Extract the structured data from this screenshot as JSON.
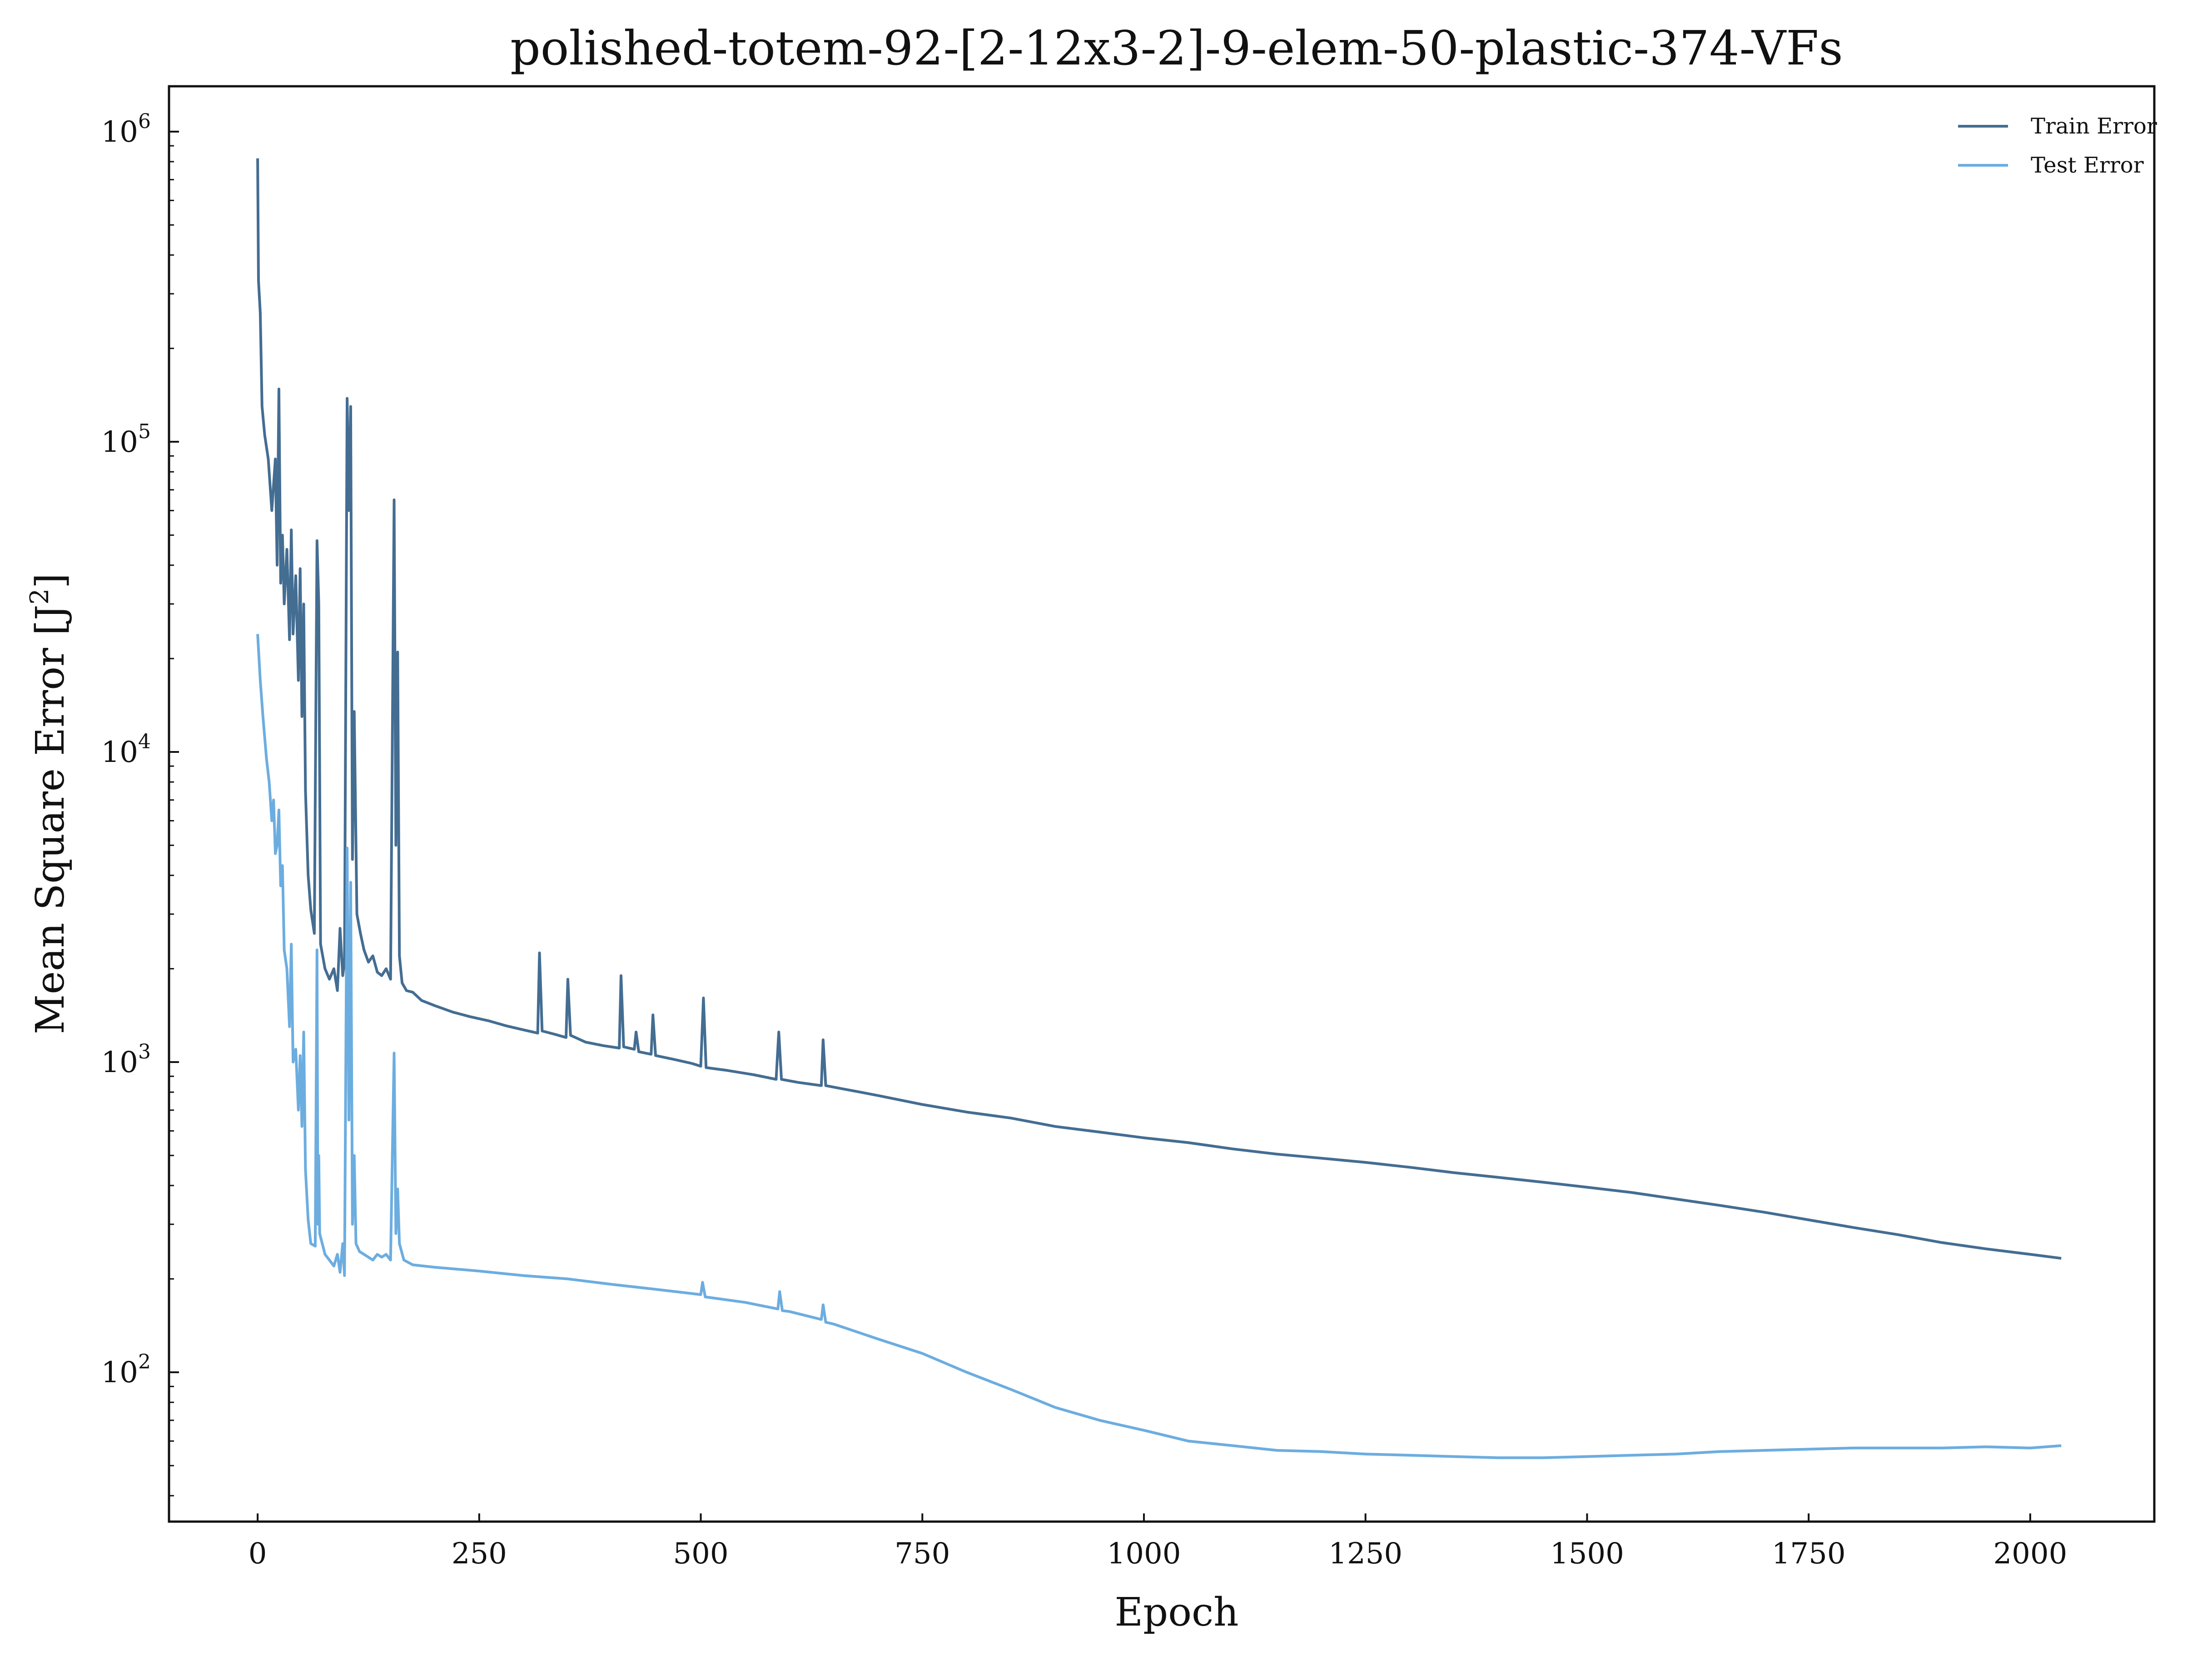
{
  "chart_data": {
    "type": "line",
    "title": "polished-totem-92-[2-12x3-2]-9-elem-50-plastic-374-VFs",
    "xlabel": "Epoch",
    "ylabel": "Mean Square Error [J²]",
    "ylabel_prefix": "Mean Square Error [J",
    "ylabel_sup": "2",
    "ylabel_suffix": "]",
    "xlim": [
      -100,
      2140
    ],
    "ylim": [
      33,
      1400000
    ],
    "yscale": "log",
    "x_ticks": [
      0,
      250,
      500,
      750,
      1000,
      1250,
      1500,
      1750,
      2000
    ],
    "y_ticks": [
      {
        "value": 100,
        "base": "10",
        "exp": "2"
      },
      {
        "value": 1000,
        "base": "10",
        "exp": "3"
      },
      {
        "value": 10000,
        "base": "10",
        "exp": "4"
      },
      {
        "value": 100000,
        "base": "10",
        "exp": "5"
      },
      {
        "value": 1000000,
        "base": "10",
        "exp": "6"
      }
    ],
    "grid": false,
    "legend_position": "top-right",
    "series": [
      {
        "name": "Train Error",
        "color": "#446d92",
        "points": [
          [
            0,
            820000
          ],
          [
            1,
            330000
          ],
          [
            3,
            260000
          ],
          [
            5,
            130000
          ],
          [
            8,
            105000
          ],
          [
            12,
            88000
          ],
          [
            16,
            60000
          ],
          [
            20,
            88000
          ],
          [
            22,
            40000
          ],
          [
            24,
            148000
          ],
          [
            26,
            35000
          ],
          [
            28,
            50000
          ],
          [
            30,
            30000
          ],
          [
            33,
            45000
          ],
          [
            36,
            23000
          ],
          [
            38,
            52000
          ],
          [
            40,
            24000
          ],
          [
            43,
            37000
          ],
          [
            46,
            17000
          ],
          [
            48,
            39000
          ],
          [
            50,
            13000
          ],
          [
            52,
            30000
          ],
          [
            54,
            7500
          ],
          [
            57,
            4000
          ],
          [
            60,
            3100
          ],
          [
            64,
            2600
          ],
          [
            67,
            48000
          ],
          [
            69,
            30000
          ],
          [
            71,
            2400
          ],
          [
            76,
            2000
          ],
          [
            81,
            1850
          ],
          [
            86,
            2000
          ],
          [
            90,
            1700
          ],
          [
            93,
            2700
          ],
          [
            96,
            1900
          ],
          [
            98,
            2100
          ],
          [
            101,
            138000
          ],
          [
            103,
            60000
          ],
          [
            105,
            130000
          ],
          [
            107,
            4500
          ],
          [
            109,
            13500
          ],
          [
            112,
            3000
          ],
          [
            116,
            2600
          ],
          [
            120,
            2300
          ],
          [
            125,
            2100
          ],
          [
            130,
            2200
          ],
          [
            135,
            1950
          ],
          [
            140,
            1900
          ],
          [
            145,
            2000
          ],
          [
            150,
            1850
          ],
          [
            154,
            65000
          ],
          [
            156,
            5000
          ],
          [
            158,
            21000
          ],
          [
            160,
            2200
          ],
          [
            163,
            1800
          ],
          [
            168,
            1700
          ],
          [
            175,
            1680
          ],
          [
            185,
            1580
          ],
          [
            200,
            1520
          ],
          [
            220,
            1450
          ],
          [
            240,
            1400
          ],
          [
            260,
            1360
          ],
          [
            280,
            1310
          ],
          [
            300,
            1270
          ],
          [
            316,
            1240
          ],
          [
            318,
            2250
          ],
          [
            321,
            1260
          ],
          [
            335,
            1230
          ],
          [
            348,
            1200
          ],
          [
            350,
            1850
          ],
          [
            353,
            1220
          ],
          [
            370,
            1160
          ],
          [
            390,
            1130
          ],
          [
            408,
            1110
          ],
          [
            410,
            1900
          ],
          [
            413,
            1120
          ],
          [
            425,
            1100
          ],
          [
            427,
            1250
          ],
          [
            430,
            1080
          ],
          [
            444,
            1060
          ],
          [
            446,
            1420
          ],
          [
            449,
            1050
          ],
          [
            470,
            1020
          ],
          [
            490,
            990
          ],
          [
            500,
            970
          ],
          [
            503,
            1610
          ],
          [
            506,
            960
          ],
          [
            530,
            940
          ],
          [
            560,
            910
          ],
          [
            585,
            880
          ],
          [
            588,
            1250
          ],
          [
            591,
            880
          ],
          [
            610,
            860
          ],
          [
            636,
            840
          ],
          [
            638,
            1180
          ],
          [
            641,
            840
          ],
          [
            660,
            820
          ],
          [
            680,
            800
          ],
          [
            700,
            780
          ],
          [
            750,
            730
          ],
          [
            800,
            690
          ],
          [
            850,
            660
          ],
          [
            900,
            620
          ],
          [
            950,
            595
          ],
          [
            1000,
            570
          ],
          [
            1050,
            550
          ],
          [
            1100,
            525
          ],
          [
            1150,
            505
          ],
          [
            1200,
            490
          ],
          [
            1250,
            475
          ],
          [
            1300,
            458
          ],
          [
            1350,
            440
          ],
          [
            1400,
            425
          ],
          [
            1450,
            410
          ],
          [
            1500,
            395
          ],
          [
            1550,
            380
          ],
          [
            1600,
            362
          ],
          [
            1650,
            345
          ],
          [
            1700,
            328
          ],
          [
            1750,
            310
          ],
          [
            1800,
            293
          ],
          [
            1850,
            278
          ],
          [
            1900,
            262
          ],
          [
            1950,
            250
          ],
          [
            2000,
            240
          ],
          [
            2035,
            233
          ]
        ]
      },
      {
        "name": "Test Error",
        "color": "#6cade0",
        "points": [
          [
            0,
            24000
          ],
          [
            3,
            17000
          ],
          [
            6,
            13000
          ],
          [
            10,
            9500
          ],
          [
            13,
            8000
          ],
          [
            16,
            6000
          ],
          [
            18,
            7000
          ],
          [
            20,
            4700
          ],
          [
            22,
            5000
          ],
          [
            24,
            6500
          ],
          [
            26,
            3700
          ],
          [
            28,
            4300
          ],
          [
            30,
            2300
          ],
          [
            33,
            2000
          ],
          [
            36,
            1300
          ],
          [
            38,
            2400
          ],
          [
            40,
            1000
          ],
          [
            43,
            1100
          ],
          [
            46,
            700
          ],
          [
            48,
            1050
          ],
          [
            50,
            620
          ],
          [
            52,
            1250
          ],
          [
            54,
            450
          ],
          [
            57,
            310
          ],
          [
            60,
            260
          ],
          [
            65,
            255
          ],
          [
            67,
            2300
          ],
          [
            68,
            300
          ],
          [
            69,
            500
          ],
          [
            70,
            280
          ],
          [
            76,
            240
          ],
          [
            81,
            230
          ],
          [
            86,
            220
          ],
          [
            90,
            240
          ],
          [
            93,
            210
          ],
          [
            96,
            260
          ],
          [
            98,
            205
          ],
          [
            101,
            4900
          ],
          [
            103,
            650
          ],
          [
            105,
            3800
          ],
          [
            107,
            300
          ],
          [
            109,
            500
          ],
          [
            111,
            260
          ],
          [
            115,
            245
          ],
          [
            120,
            240
          ],
          [
            125,
            235
          ],
          [
            130,
            230
          ],
          [
            135,
            240
          ],
          [
            140,
            235
          ],
          [
            145,
            240
          ],
          [
            150,
            230
          ],
          [
            154,
            1070
          ],
          [
            156,
            280
          ],
          [
            158,
            390
          ],
          [
            160,
            260
          ],
          [
            165,
            230
          ],
          [
            175,
            222
          ],
          [
            200,
            218
          ],
          [
            250,
            212
          ],
          [
            300,
            205
          ],
          [
            350,
            200
          ],
          [
            400,
            192
          ],
          [
            450,
            185
          ],
          [
            500,
            178
          ],
          [
            502,
            195
          ],
          [
            505,
            175
          ],
          [
            550,
            168
          ],
          [
            587,
            160
          ],
          [
            589,
            182
          ],
          [
            592,
            158
          ],
          [
            600,
            157
          ],
          [
            636,
            148
          ],
          [
            638,
            165
          ],
          [
            641,
            145
          ],
          [
            650,
            143
          ],
          [
            700,
            128
          ],
          [
            750,
            115
          ],
          [
            800,
            100
          ],
          [
            850,
            88
          ],
          [
            900,
            77
          ],
          [
            950,
            70
          ],
          [
            1000,
            65
          ],
          [
            1050,
            60
          ],
          [
            1100,
            58
          ],
          [
            1150,
            56
          ],
          [
            1200,
            55.5
          ],
          [
            1250,
            54.5
          ],
          [
            1300,
            54
          ],
          [
            1350,
            53.5
          ],
          [
            1400,
            53
          ],
          [
            1450,
            53
          ],
          [
            1500,
            53.5
          ],
          [
            1550,
            54
          ],
          [
            1600,
            54.5
          ],
          [
            1650,
            55.5
          ],
          [
            1700,
            56
          ],
          [
            1750,
            56.5
          ],
          [
            1800,
            57
          ],
          [
            1850,
            57
          ],
          [
            1900,
            57
          ],
          [
            1950,
            57.5
          ],
          [
            2000,
            57
          ],
          [
            2035,
            58
          ]
        ]
      }
    ]
  }
}
